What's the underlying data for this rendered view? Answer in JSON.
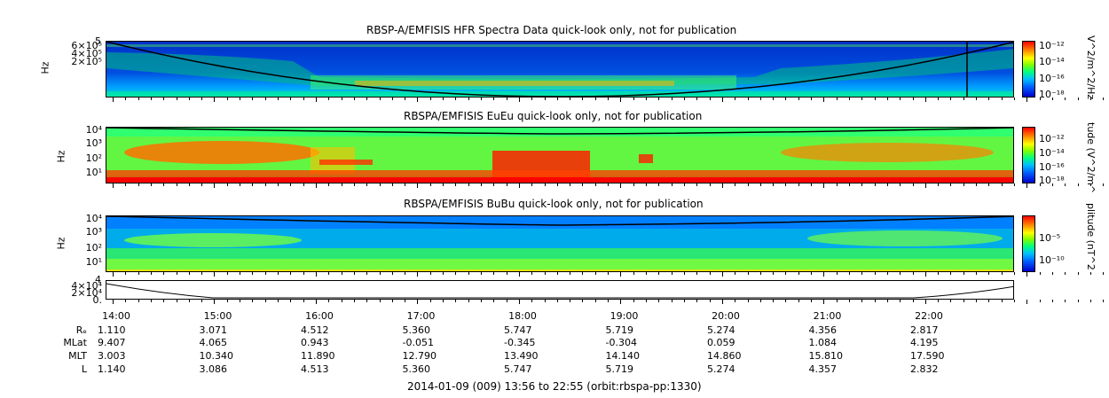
{
  "chart_data": [
    {
      "type": "heatmap",
      "title": "RBSP-A/EMFISIS  HFR Spectra Data quick-look only, not for publication",
      "ylabel": "Hz",
      "yticks": [
        "6×10⁵",
        "4×10⁵",
        "2×10⁵"
      ],
      "ytick_top": "5",
      "colorbar_label": "V^2/m^2/Hz",
      "colorbar_ticks": [
        "10⁻¹²",
        "10⁻¹⁴",
        "10⁻¹⁶",
        "10⁻¹⁸"
      ]
    },
    {
      "type": "heatmap",
      "title": "RBSPA/EMFISIS  EuEu quick-look only, not for publication",
      "ylabel": "Hz",
      "yticks": [
        "10⁴",
        "10³",
        "10²",
        "10¹"
      ],
      "colorbar_label": "tude (V^2/m^",
      "colorbar_ticks": [
        "10⁻¹²",
        "10⁻¹⁴",
        "10⁻¹⁶",
        "10⁻¹⁸"
      ]
    },
    {
      "type": "heatmap",
      "title": "RBSPA/EMFISIS  BuBu quick-look only, not for publication",
      "ylabel": "Hz",
      "yticks": [
        "10⁴",
        "10³",
        "10²",
        "10¹"
      ],
      "colorbar_label": "plitude (nT^2",
      "colorbar_ticks": [
        "10⁻⁵",
        "10⁻¹⁰"
      ]
    },
    {
      "type": "line",
      "yticks": [
        "4×10⁴",
        "2×10⁴",
        "0."
      ],
      "ytick_top": "4"
    }
  ],
  "x_axis": {
    "ticks": [
      "14:00",
      "15:00",
      "16:00",
      "17:00",
      "18:00",
      "19:00",
      "20:00",
      "21:00",
      "22:00"
    ],
    "rows": [
      {
        "label": "Rₑ",
        "values": [
          "1.110",
          "3.071",
          "4.512",
          "5.360",
          "5.747",
          "5.719",
          "5.274",
          "4.356",
          "2.817"
        ]
      },
      {
        "label": "MLat",
        "values": [
          "9.407",
          "4.065",
          "0.943",
          "-0.051",
          "-0.345",
          "-0.304",
          "0.059",
          "1.084",
          "4.195"
        ]
      },
      {
        "label": "MLT",
        "values": [
          "3.003",
          "10.340",
          "11.890",
          "12.790",
          "13.490",
          "14.140",
          "14.860",
          "15.810",
          "17.590"
        ]
      },
      {
        "label": "L",
        "values": [
          "1.140",
          "3.086",
          "4.513",
          "5.360",
          "5.747",
          "5.719",
          "5.274",
          "4.357",
          "2.832"
        ]
      }
    ]
  },
  "footer": "2014-01-09 (009) 13:56 to 22:55 (orbit:rbspa-pp:1330)"
}
